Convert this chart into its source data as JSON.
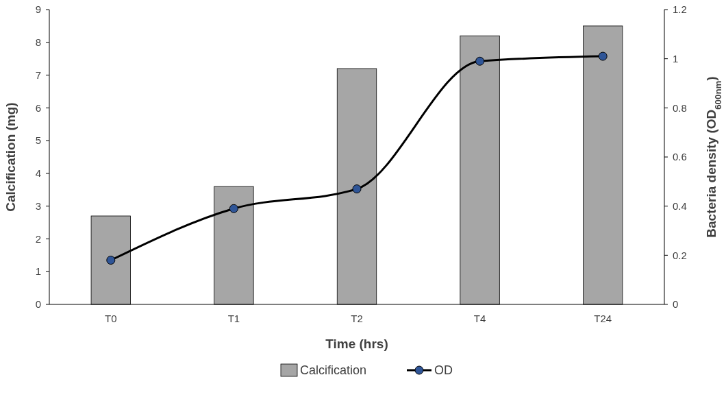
{
  "chart_data": {
    "type": "bar",
    "xlabel": "Time (hrs)",
    "ylabel": "Calcification (mg)",
    "y2label": "Bacteria density (OD$_{600nm}$)",
    "categories": [
      "T0",
      "T1",
      "T2",
      "T4",
      "T24"
    ],
    "series": [
      {
        "name": "Calcification",
        "color": "#a6a6a6",
        "values": [
          2.7,
          3.6,
          7.2,
          8.2,
          8.5
        ]
      },
      {
        "name": "OD",
        "type": "line",
        "axis": "y2",
        "color": "#2f5597",
        "marker": "circle",
        "values": [
          0.18,
          0.39,
          0.47,
          0.99,
          1.01
        ]
      }
    ],
    "ylim": [
      0,
      9
    ],
    "yticks": [
      0,
      1,
      2,
      3,
      4,
      5,
      6,
      7,
      8,
      9
    ],
    "y2lim": [
      0,
      1.2
    ],
    "y2ticks": [
      0,
      0.2,
      0.4,
      0.6,
      0.8,
      1,
      1.2
    ],
    "legend": "bottom",
    "grid": false
  }
}
